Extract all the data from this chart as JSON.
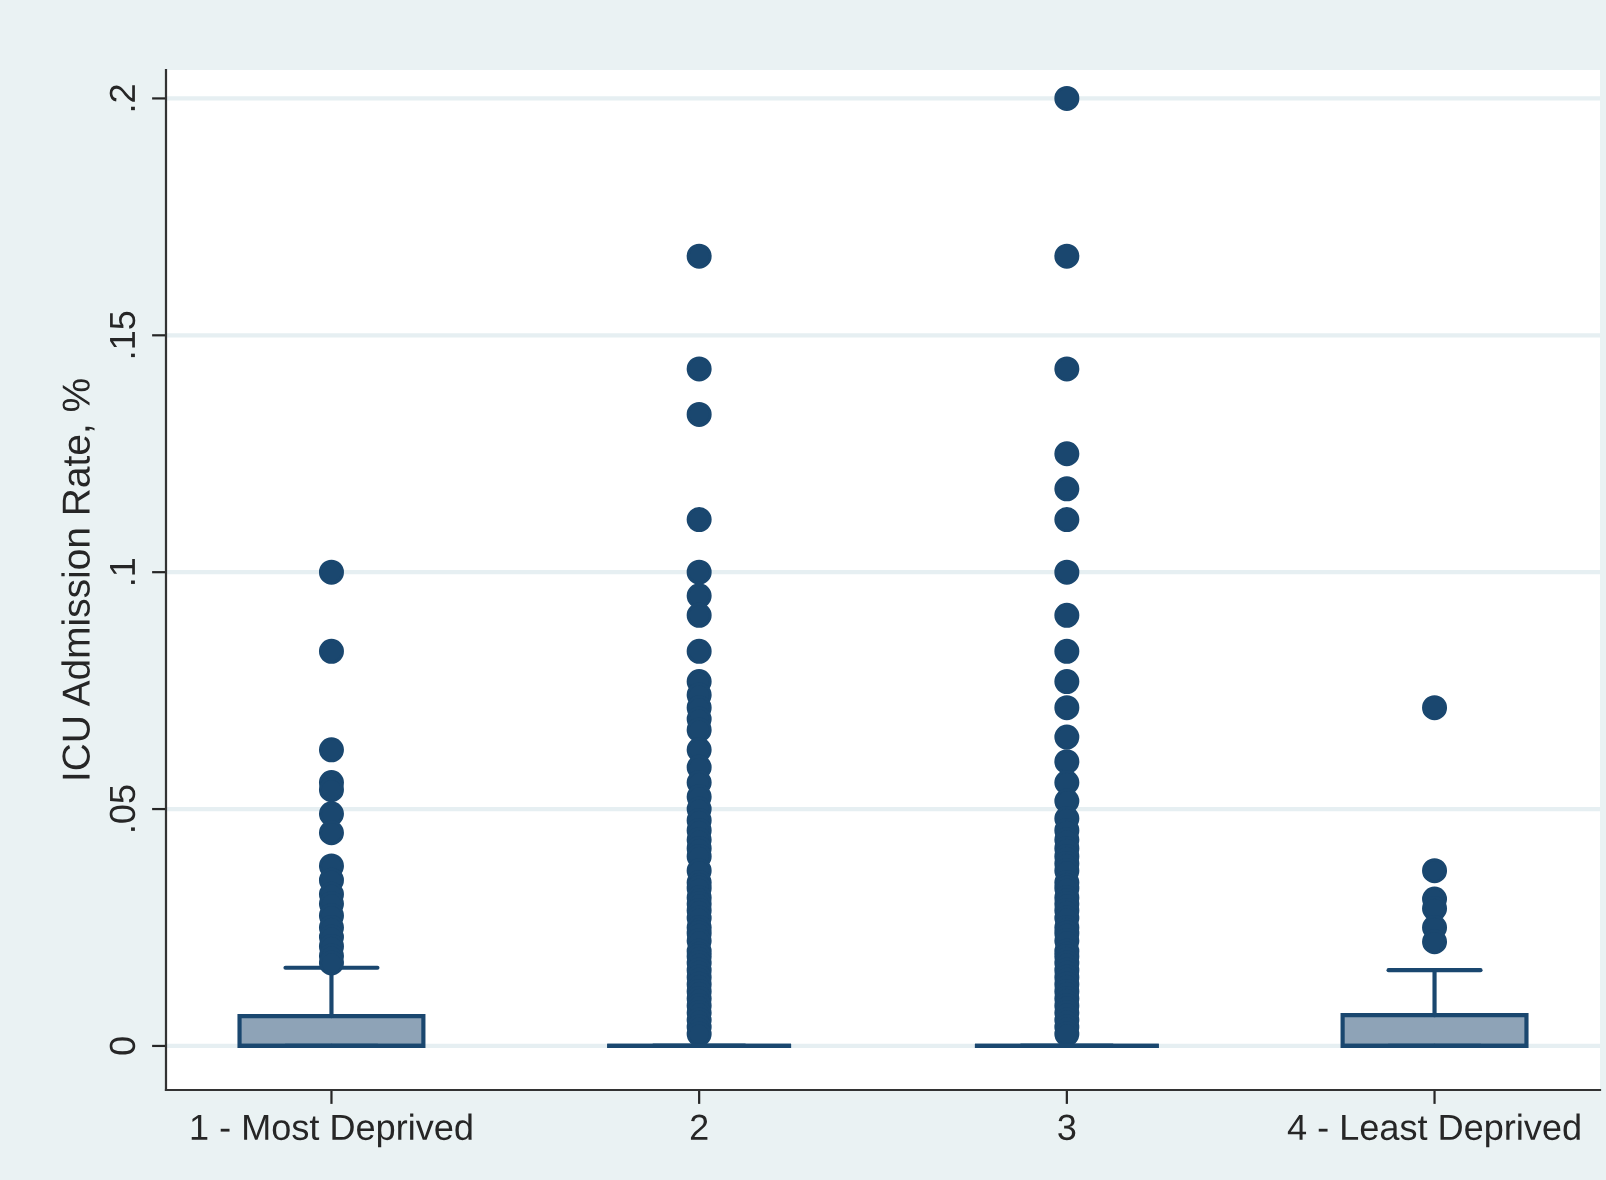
{
  "chart_data": {
    "type": "box",
    "ylabel": "ICU Admission Rate, %",
    "categories": [
      "1 - Most Deprived",
      "2",
      "3",
      "4 - Least Deprived"
    ],
    "series": [
      {
        "color": "#1a476f",
        "boxes": [
          {
            "low": 0,
            "q1": 0,
            "median": 0,
            "q3": 0.0063,
            "high": 0.0165,
            "outliers": [
              0.1,
              0.0833,
              0.0625,
              0.0556,
              0.0541,
              0.049,
              0.045,
              0.038,
              0.035,
              0.032,
              0.03,
              0.0275,
              0.025,
              0.023,
              0.021,
              0.019,
              0.0175
            ]
          },
          {
            "low": 0,
            "q1": 0,
            "median": 0,
            "q3": 0,
            "high": 0,
            "outliers": [
              0.1667,
              0.1429,
              0.1333,
              0.1111,
              0.1,
              0.095,
              0.0909,
              0.0833,
              0.0769,
              0.0741,
              0.0714,
              0.069,
              0.0667,
              0.0625,
              0.0588,
              0.0556,
              0.0526,
              0.05,
              0.0476,
              0.0455,
              0.0435,
              0.0417,
              0.04,
              0.037,
              0.0345,
              0.0333,
              0.0313,
              0.03,
              0.0286,
              0.027,
              0.025,
              0.0238,
              0.0222,
              0.02,
              0.0189,
              0.0175,
              0.016,
              0.0145,
              0.013,
              0.0115,
              0.01,
              0.0085,
              0.007,
              0.0055,
              0.004,
              0.0025
            ]
          },
          {
            "low": 0,
            "q1": 0,
            "median": 0,
            "q3": 0,
            "high": 0,
            "outliers": [
              0.2,
              0.1667,
              0.1429,
              0.125,
              0.1176,
              0.1111,
              0.1,
              0.0909,
              0.0833,
              0.0769,
              0.0714,
              0.0652,
              0.06,
              0.0556,
              0.0517,
              0.048,
              0.0455,
              0.0435,
              0.0417,
              0.04,
              0.0385,
              0.037,
              0.0345,
              0.0333,
              0.0313,
              0.03,
              0.0286,
              0.027,
              0.025,
              0.0238,
              0.0222,
              0.02,
              0.0189,
              0.0175,
              0.016,
              0.0145,
              0.013,
              0.0115,
              0.01,
              0.0085,
              0.007,
              0.0055,
              0.004,
              0.0025
            ]
          },
          {
            "low": 0,
            "q1": 0,
            "median": 0,
            "q3": 0.0065,
            "high": 0.016,
            "outliers": [
              0.0714,
              0.037,
              0.031,
              0.029,
              0.025,
              0.022
            ]
          }
        ]
      }
    ],
    "ylim": [
      -0.0093,
      0.206
    ],
    "yticks": [
      {
        "value": 0,
        "label": "0"
      },
      {
        "value": 0.05,
        "label": ".05"
      },
      {
        "value": 0.1,
        "label": ".1"
      },
      {
        "value": 0.15,
        "label": ".15"
      },
      {
        "value": 0.2,
        "label": ".2"
      }
    ],
    "grid": "y",
    "marker": "circle",
    "legend": false
  }
}
